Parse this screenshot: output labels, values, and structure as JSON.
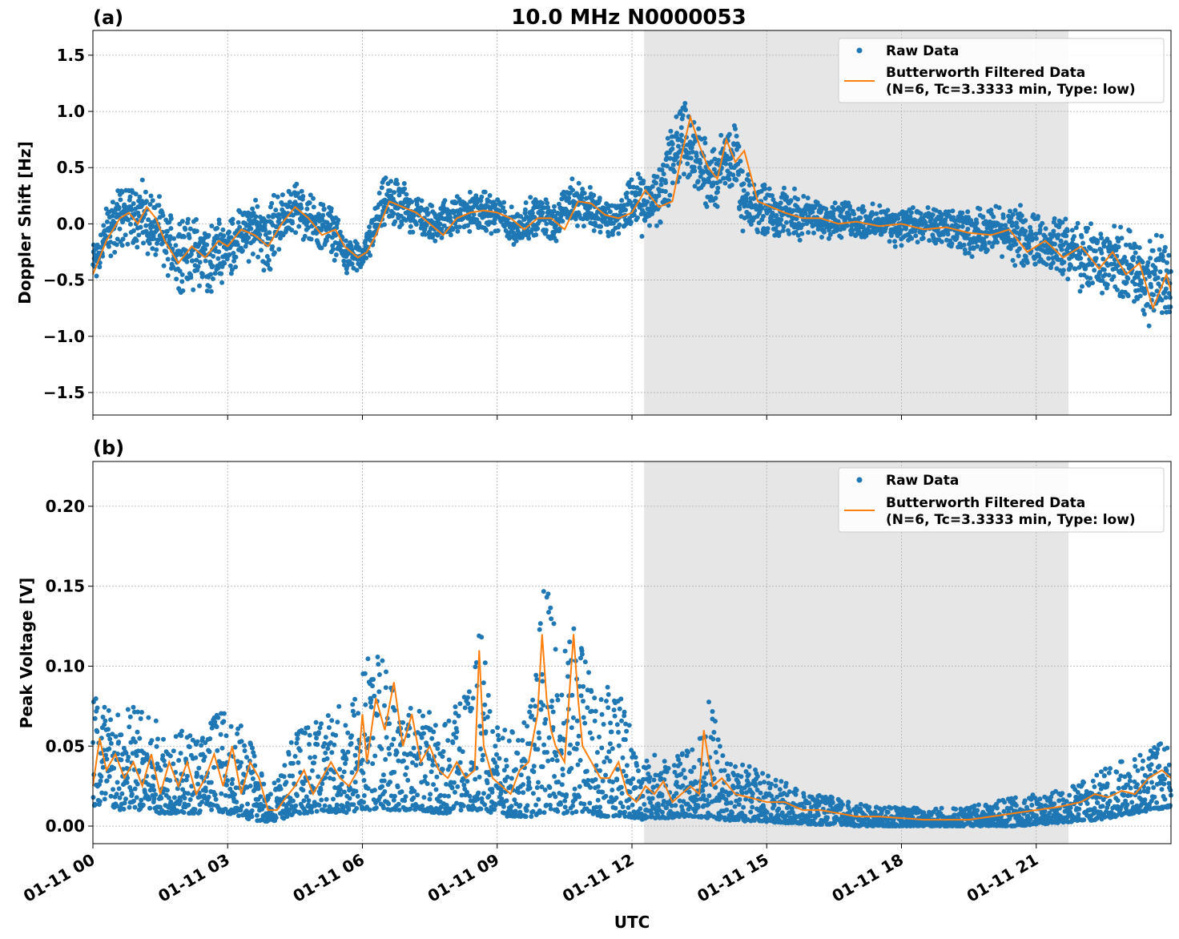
{
  "figure": {
    "title": "10.0 MHz N0000053",
    "xlabel": "UTC",
    "x_ticks": [
      "01-11 00",
      "01-11 03",
      "01-11 06",
      "01-11 09",
      "01-11 12",
      "01-11 15",
      "01-11 18",
      "01-11 21"
    ],
    "colors": {
      "raw": "#1f77b4",
      "filtered": "#ff7f0e",
      "shade": "#e6e6e6",
      "grid": "#b0b0b0"
    },
    "shaded_interval_hours": [
      12.27,
      21.72
    ]
  },
  "legend": {
    "raw_label": "Raw Data",
    "filtered_line1": "Butterworth Filtered Data",
    "filtered_line2": "(N=6, Tc=3.3333 min, Type: low)"
  },
  "chart_data": [
    {
      "type": "scatter",
      "panel_label": "(a)",
      "ylabel": "Doppler Shift [Hz]",
      "ylim": [
        -1.7,
        1.72
      ],
      "y_ticks": [
        "1.5",
        "1.0",
        "0.5",
        "0.0",
        "−0.5",
        "−1.0",
        "−1.5"
      ],
      "xlim_hours": [
        0,
        24
      ],
      "grid": true,
      "legend_position": "top-right",
      "series": [
        {
          "name": "Raw Data",
          "x_hours": [
            0,
            0.5,
            0.8,
            1.0,
            1.3,
            1.6,
            1.9,
            2.2,
            2.6,
            3.0,
            3.3,
            3.7,
            3.9,
            4.2,
            4.5,
            5.0,
            5.3,
            5.6,
            5.8,
            6.0,
            6.2,
            6.5,
            6.9,
            7.2,
            7.5,
            7.9,
            8.3,
            8.6,
            9.0,
            9.4,
            9.7,
            10.0,
            10.3,
            10.6,
            10.9,
            11.2,
            11.5,
            11.8,
            12.0,
            12.3,
            12.6,
            12.9,
            13.1,
            13.3,
            13.6,
            13.9,
            14.1,
            14.3,
            14.5,
            14.8,
            15.1,
            15.5,
            16.0,
            16.5,
            17.0,
            17.5,
            18.0,
            18.5,
            19.0,
            19.5,
            20.0,
            20.5,
            21.0,
            21.5,
            22.0,
            22.5,
            22.8,
            23.1,
            23.4,
            23.7,
            24.0
          ],
          "y_mid": [
            -0.35,
            0.05,
            0.1,
            0.1,
            0.0,
            -0.15,
            -0.25,
            -0.25,
            -0.3,
            -0.2,
            -0.1,
            -0.05,
            -0.1,
            0.05,
            0.15,
            0.0,
            -0.05,
            -0.25,
            -0.3,
            -0.3,
            -0.1,
            0.2,
            0.15,
            0.1,
            0.0,
            0.05,
            0.1,
            0.12,
            0.08,
            -0.05,
            0.05,
            0.08,
            0.0,
            0.2,
            0.18,
            0.1,
            0.05,
            0.08,
            0.2,
            0.15,
            0.25,
            0.6,
            0.75,
            0.7,
            0.45,
            0.4,
            0.65,
            0.55,
            0.15,
            0.15,
            0.12,
            0.1,
            0.05,
            0.05,
            0.02,
            0.0,
            -0.02,
            -0.02,
            -0.05,
            -0.08,
            -0.05,
            -0.1,
            -0.15,
            -0.2,
            -0.3,
            -0.35,
            -0.3,
            -0.4,
            -0.55,
            -0.45,
            -0.55
          ],
          "y_half_spread": [
            0.25,
            0.35,
            0.35,
            0.35,
            0.35,
            0.35,
            0.4,
            0.35,
            0.4,
            0.3,
            0.3,
            0.3,
            0.45,
            0.25,
            0.25,
            0.25,
            0.25,
            0.2,
            0.15,
            0.15,
            0.2,
            0.25,
            0.25,
            0.2,
            0.2,
            0.2,
            0.2,
            0.2,
            0.2,
            0.2,
            0.2,
            0.2,
            0.2,
            0.25,
            0.25,
            0.2,
            0.2,
            0.2,
            0.3,
            0.3,
            0.35,
            0.45,
            0.5,
            0.45,
            0.35,
            0.35,
            0.35,
            0.35,
            0.3,
            0.3,
            0.25,
            0.25,
            0.2,
            0.2,
            0.18,
            0.18,
            0.2,
            0.2,
            0.2,
            0.22,
            0.25,
            0.28,
            0.3,
            0.3,
            0.35,
            0.35,
            0.35,
            0.4,
            0.45,
            0.45,
            0.45
          ]
        },
        {
          "name": "Butterworth Filtered Data",
          "x_hours": [
            0,
            0.3,
            0.6,
            0.8,
            1.0,
            1.2,
            1.4,
            1.6,
            1.9,
            2.2,
            2.5,
            2.8,
            3.0,
            3.3,
            3.6,
            3.9,
            4.2,
            4.5,
            4.8,
            5.1,
            5.4,
            5.6,
            5.9,
            6.1,
            6.3,
            6.6,
            6.9,
            7.2,
            7.5,
            7.8,
            8.1,
            8.4,
            8.7,
            9.0,
            9.3,
            9.6,
            9.9,
            10.2,
            10.5,
            10.8,
            11.1,
            11.4,
            11.7,
            12.0,
            12.3,
            12.6,
            12.9,
            13.1,
            13.3,
            13.5,
            13.7,
            13.9,
            14.1,
            14.3,
            14.5,
            14.8,
            15.1,
            15.4,
            15.8,
            16.2,
            16.6,
            17.0,
            17.5,
            18.0,
            18.5,
            19.0,
            19.5,
            20.0,
            20.4,
            20.8,
            21.2,
            21.6,
            22.0,
            22.4,
            22.7,
            23.0,
            23.3,
            23.6,
            23.9,
            24.0
          ],
          "y": [
            -0.45,
            -0.15,
            0.05,
            0.1,
            0.0,
            0.15,
            0.05,
            -0.15,
            -0.35,
            -0.2,
            -0.3,
            -0.15,
            -0.2,
            -0.05,
            -0.1,
            -0.2,
            0.0,
            0.15,
            0.05,
            -0.1,
            -0.05,
            -0.2,
            -0.3,
            -0.25,
            -0.1,
            0.2,
            0.15,
            0.1,
            0.0,
            -0.1,
            0.05,
            0.1,
            0.12,
            0.1,
            0.05,
            -0.05,
            0.05,
            0.05,
            -0.05,
            0.2,
            0.18,
            0.08,
            0.05,
            0.1,
            0.3,
            0.15,
            0.2,
            0.6,
            0.95,
            0.7,
            0.5,
            0.4,
            0.75,
            0.55,
            0.65,
            0.2,
            0.15,
            0.1,
            0.05,
            0.05,
            0.0,
            0.02,
            -0.02,
            0.0,
            -0.05,
            -0.03,
            -0.08,
            -0.1,
            -0.05,
            -0.25,
            -0.15,
            -0.3,
            -0.2,
            -0.4,
            -0.25,
            -0.45,
            -0.35,
            -0.75,
            -0.45,
            -0.6
          ]
        }
      ]
    },
    {
      "type": "scatter",
      "panel_label": "(b)",
      "ylabel": "Peak Voltage [V]",
      "ylim": [
        -0.011,
        0.228
      ],
      "y_ticks": [
        "0.20",
        "0.15",
        "0.10",
        "0.05",
        "0.00"
      ],
      "xlim_hours": [
        0,
        24
      ],
      "grid": true,
      "legend_position": "top-right",
      "series": [
        {
          "name": "Raw Data",
          "x_hours": [
            0,
            0.3,
            0.6,
            0.9,
            1.2,
            1.5,
            1.8,
            2.1,
            2.4,
            2.7,
            3.0,
            3.3,
            3.6,
            3.9,
            4.2,
            4.5,
            4.8,
            5.1,
            5.4,
            5.7,
            6.0,
            6.2,
            6.4,
            6.6,
            6.8,
            7.0,
            7.3,
            7.6,
            7.9,
            8.2,
            8.5,
            8.7,
            8.9,
            9.2,
            9.5,
            9.8,
            10.0,
            10.2,
            10.4,
            10.6,
            10.8,
            11.0,
            11.3,
            11.6,
            11.9,
            12.2,
            12.5,
            12.8,
            13.1,
            13.4,
            13.7,
            14.0,
            14.4,
            14.8,
            15.2,
            15.6,
            16.0,
            16.5,
            17.0,
            17.5,
            18.0,
            18.5,
            19.0,
            19.5,
            20.0,
            20.5,
            21.0,
            21.5,
            22.0,
            22.4,
            22.8,
            23.2,
            23.6,
            24.0
          ],
          "y_low": [
            0.012,
            0.012,
            0.01,
            0.01,
            0.01,
            0.008,
            0.008,
            0.008,
            0.008,
            0.01,
            0.008,
            0.006,
            0.003,
            0.003,
            0.004,
            0.008,
            0.008,
            0.01,
            0.008,
            0.008,
            0.01,
            0.01,
            0.012,
            0.01,
            0.01,
            0.01,
            0.01,
            0.008,
            0.008,
            0.01,
            0.01,
            0.01,
            0.008,
            0.006,
            0.006,
            0.006,
            0.008,
            0.01,
            0.008,
            0.008,
            0.008,
            0.008,
            0.006,
            0.006,
            0.006,
            0.004,
            0.005,
            0.005,
            0.006,
            0.006,
            0.005,
            0.004,
            0.003,
            0.003,
            0.002,
            0.002,
            0.001,
            0.001,
            0.0,
            0.0,
            0.0,
            0.0,
            0.0,
            0.0,
            0.0,
            0.0,
            0.001,
            0.002,
            0.003,
            0.004,
            0.006,
            0.008,
            0.01,
            0.012
          ],
          "y_high": [
            0.1,
            0.08,
            0.07,
            0.08,
            0.07,
            0.065,
            0.06,
            0.06,
            0.06,
            0.075,
            0.07,
            0.065,
            0.05,
            0.025,
            0.035,
            0.06,
            0.065,
            0.07,
            0.075,
            0.08,
            0.1,
            0.12,
            0.11,
            0.1,
            0.08,
            0.08,
            0.075,
            0.07,
            0.07,
            0.08,
            0.1,
            0.14,
            0.07,
            0.06,
            0.06,
            0.08,
            0.16,
            0.14,
            0.1,
            0.12,
            0.13,
            0.1,
            0.09,
            0.1,
            0.07,
            0.04,
            0.045,
            0.04,
            0.045,
            0.06,
            0.09,
            0.045,
            0.04,
            0.035,
            0.03,
            0.025,
            0.02,
            0.018,
            0.014,
            0.012,
            0.012,
            0.012,
            0.012,
            0.012,
            0.015,
            0.018,
            0.02,
            0.022,
            0.028,
            0.035,
            0.04,
            0.045,
            0.05,
            0.06
          ]
        },
        {
          "name": "Butterworth Filtered Data",
          "x_hours": [
            0,
            0.15,
            0.3,
            0.5,
            0.7,
            0.9,
            1.1,
            1.3,
            1.5,
            1.7,
            1.9,
            2.1,
            2.3,
            2.5,
            2.7,
            2.9,
            3.1,
            3.3,
            3.5,
            3.7,
            3.9,
            4.1,
            4.3,
            4.5,
            4.7,
            4.9,
            5.1,
            5.3,
            5.5,
            5.7,
            5.9,
            6.0,
            6.1,
            6.3,
            6.5,
            6.7,
            6.9,
            7.1,
            7.3,
            7.5,
            7.7,
            7.9,
            8.1,
            8.3,
            8.5,
            8.6,
            8.7,
            8.9,
            9.1,
            9.3,
            9.5,
            9.7,
            9.9,
            10.0,
            10.1,
            10.2,
            10.3,
            10.5,
            10.7,
            10.8,
            10.9,
            11.1,
            11.3,
            11.5,
            11.7,
            11.9,
            12.1,
            12.3,
            12.5,
            12.7,
            12.9,
            13.1,
            13.3,
            13.5,
            13.6,
            13.8,
            14.0,
            14.3,
            14.6,
            15.0,
            15.4,
            15.8,
            16.2,
            16.6,
            17.0,
            17.5,
            18.0,
            18.5,
            19.0,
            19.5,
            20.0,
            20.5,
            21.0,
            21.5,
            22.0,
            22.3,
            22.6,
            22.9,
            23.2,
            23.5,
            23.8,
            24.0
          ],
          "y": [
            0.025,
            0.055,
            0.035,
            0.045,
            0.03,
            0.04,
            0.025,
            0.045,
            0.02,
            0.04,
            0.025,
            0.04,
            0.02,
            0.03,
            0.045,
            0.025,
            0.05,
            0.02,
            0.04,
            0.03,
            0.01,
            0.01,
            0.018,
            0.025,
            0.035,
            0.02,
            0.03,
            0.04,
            0.03,
            0.025,
            0.035,
            0.07,
            0.04,
            0.08,
            0.06,
            0.09,
            0.05,
            0.07,
            0.04,
            0.05,
            0.035,
            0.03,
            0.04,
            0.03,
            0.035,
            0.11,
            0.05,
            0.03,
            0.025,
            0.02,
            0.035,
            0.04,
            0.07,
            0.12,
            0.08,
            0.06,
            0.05,
            0.04,
            0.12,
            0.08,
            0.05,
            0.04,
            0.03,
            0.03,
            0.04,
            0.02,
            0.015,
            0.025,
            0.02,
            0.028,
            0.015,
            0.02,
            0.025,
            0.02,
            0.06,
            0.025,
            0.03,
            0.02,
            0.018,
            0.015,
            0.015,
            0.01,
            0.01,
            0.008,
            0.006,
            0.006,
            0.005,
            0.004,
            0.004,
            0.004,
            0.006,
            0.008,
            0.01,
            0.012,
            0.015,
            0.02,
            0.018,
            0.022,
            0.02,
            0.03,
            0.035,
            0.03
          ]
        }
      ]
    }
  ]
}
